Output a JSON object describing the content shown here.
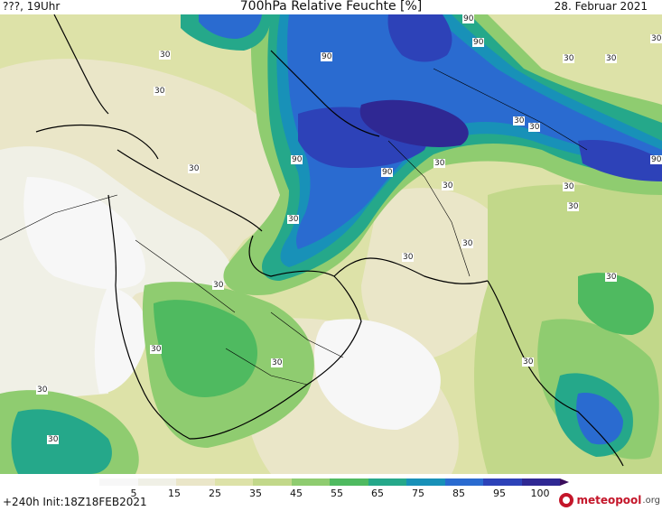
{
  "header": {
    "left": "???, 19Uhr",
    "title": "700hPa Relative Feuchte [%]",
    "date": "28. Februar 2021"
  },
  "footer": {
    "run": "+240h  Init:18Z18FEB2021"
  },
  "logo": {
    "text": "meteopool",
    "suffix": ".org"
  },
  "legend": {
    "ticks": [
      "5",
      "15",
      "25",
      "35",
      "45",
      "55",
      "65",
      "75",
      "85",
      "95",
      "100"
    ],
    "colors": [
      "#f7f7f7",
      "#f0f0e6",
      "#eae6c8",
      "#dde2a8",
      "#c2d88a",
      "#8fcc70",
      "#4fba60",
      "#25a88a",
      "#1891b8",
      "#2a6bd0",
      "#2d42b8",
      "#2f2893",
      "#3a0d5b"
    ]
  },
  "map": {
    "contour_labels": [
      "30",
      "30",
      "30",
      "30",
      "30",
      "30",
      "30",
      "30",
      "30",
      "30",
      "30",
      "30",
      "30",
      "30",
      "30",
      "30",
      "30",
      "30",
      "30",
      "30",
      "30",
      "30",
      "90",
      "90",
      "90",
      "90",
      "90",
      "90"
    ]
  }
}
